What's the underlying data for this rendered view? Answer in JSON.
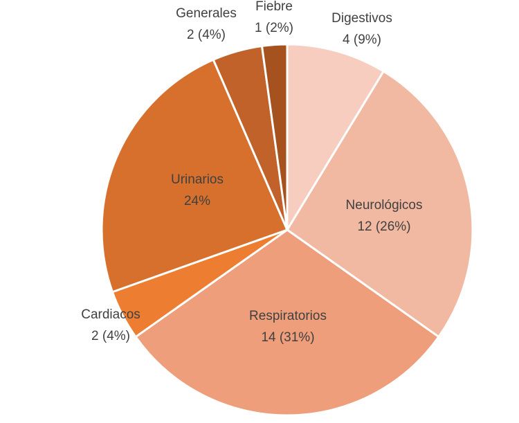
{
  "chart_data": {
    "type": "pie",
    "categories": [
      "Digestivos",
      "Neurológicos",
      "Respiratorios",
      "Cardiacos",
      "Urinarios",
      "Generales",
      "Fiebre"
    ],
    "values": [
      4,
      12,
      14,
      2,
      11,
      2,
      1
    ],
    "value_labels": [
      "4 (9%)",
      "12 (26%)",
      "14 (31%)",
      "2 (4%)",
      "24%",
      "2 (4%)",
      "1 (2%)"
    ],
    "colors": [
      "#f7cdbf",
      "#f2b9a2",
      "#ee9e7b",
      "#ed7d31",
      "#d6702c",
      "#c1622a",
      "#a5521f"
    ]
  }
}
